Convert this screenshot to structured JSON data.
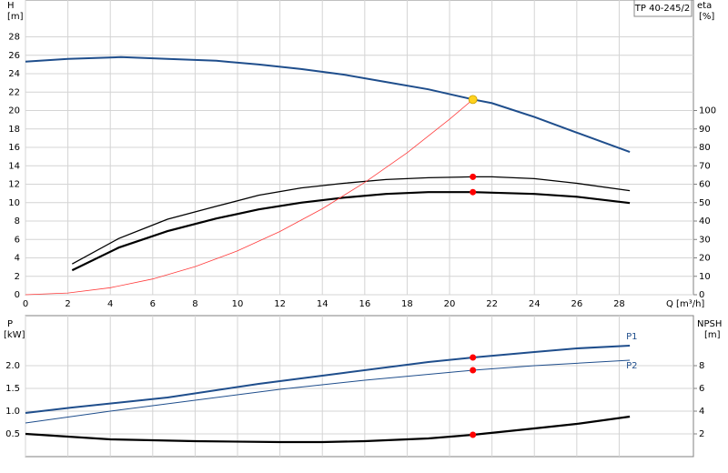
{
  "chart_data": [
    {
      "type": "line",
      "title": "TP 40-245/2",
      "ylabel": "H",
      "yunit": "[m]",
      "y2label": "eta",
      "y2unit": "[%]",
      "xlabel": "Q [m³/h]",
      "xlim": [
        0,
        31.5
      ],
      "xticks": [
        0,
        2,
        4,
        6,
        8,
        10,
        12,
        14,
        16,
        18,
        20,
        22,
        24,
        26,
        28
      ],
      "ylim": [
        0,
        32
      ],
      "yticks": [
        0,
        2,
        4,
        6,
        8,
        10,
        12,
        14,
        16,
        18,
        20,
        22,
        24,
        26,
        28
      ],
      "y2lim": [
        0,
        160
      ],
      "y2ticks": [
        0,
        10,
        20,
        30,
        40,
        50,
        60,
        70,
        80,
        90,
        100
      ],
      "grid": true,
      "series": [
        {
          "color": "#1f4e8c",
          "width": 2,
          "axis": "y",
          "x": [
            0,
            2,
            4.5,
            6.7,
            9,
            11,
            13,
            15,
            17,
            19,
            21.1,
            22,
            24,
            26,
            28.5
          ],
          "values": [
            25.3,
            25.6,
            25.8,
            25.6,
            25.4,
            25.0,
            24.5,
            23.9,
            23.1,
            22.3,
            21.2,
            20.8,
            19.3,
            17.6,
            15.5
          ]
        },
        {
          "color": "#000000",
          "width": 1.3,
          "axis": "y2",
          "x": [
            2.2,
            4.4,
            6.7,
            9,
            11,
            13,
            15,
            17,
            19,
            21.1,
            22,
            24,
            26,
            28.5
          ],
          "values": [
            16.7,
            30.5,
            41,
            48,
            54,
            58,
            60.5,
            62.5,
            63.5,
            64,
            64,
            63,
            60.5,
            56.5
          ]
        },
        {
          "color": "#000000",
          "width": 2.2,
          "axis": "y2",
          "x": [
            2.2,
            4.4,
            6.7,
            9,
            11,
            13,
            15,
            17,
            19,
            21.1,
            24,
            26,
            28.5
          ],
          "values": [
            13.3,
            25.6,
            34.5,
            41.4,
            46.3,
            50,
            52.7,
            54.7,
            55.7,
            55.7,
            54.7,
            53.2,
            49.8
          ]
        },
        {
          "color": "#ff3b3b",
          "width": 0.8,
          "axis": "y",
          "x": [
            0,
            2,
            4,
            6,
            8,
            10,
            12,
            14,
            16,
            18,
            20,
            21.1
          ],
          "values": [
            0,
            0.19,
            0.76,
            1.71,
            3.05,
            4.76,
            6.86,
            9.33,
            12.19,
            15.42,
            19.05,
            21.2
          ]
        }
      ],
      "points": [
        {
          "x": 21.1,
          "y": 21.2,
          "axis": "y",
          "color": "#ffd21f"
        },
        {
          "x": 21.1,
          "y": 64,
          "axis": "y2",
          "color": "#ff0000"
        },
        {
          "x": 21.1,
          "y": 55.7,
          "axis": "y2",
          "color": "#ff0000"
        }
      ]
    },
    {
      "type": "line",
      "ylabel": "P",
      "yunit": "[kW]",
      "y2label": "NPSH",
      "y2unit": "[m]",
      "xlim": [
        0,
        31.5
      ],
      "ylim": [
        0,
        3.1
      ],
      "yticks": [
        0.5,
        {
          "value": 1.0,
          "label": "1.0"
        },
        1.5,
        {
          "value": 2.0,
          "label": "2.0"
        }
      ],
      "y2lim": [
        0,
        12.4
      ],
      "y2ticks": [
        2,
        4,
        6,
        8
      ],
      "grid": true,
      "series": [
        {
          "name": "P1",
          "color": "#1f4e8c",
          "width": 2,
          "axis": "y",
          "label_side": "above",
          "x": [
            0,
            2.2,
            6.7,
            11,
            15,
            19,
            21.1,
            24,
            26,
            28.5
          ],
          "values": [
            0.96,
            1.08,
            1.3,
            1.6,
            1.84,
            2.08,
            2.18,
            2.3,
            2.38,
            2.44
          ]
        },
        {
          "name": "P2",
          "color": "#1f4e8c",
          "width": 1,
          "axis": "y",
          "label_side": "below",
          "x": [
            0,
            4,
            8,
            12,
            16,
            21.1,
            24,
            28.5
          ],
          "values": [
            0.74,
            1.0,
            1.24,
            1.48,
            1.68,
            1.9,
            2.0,
            2.12
          ]
        },
        {
          "color": "#000000",
          "width": 2.2,
          "axis": "y2",
          "x": [
            0,
            4,
            8,
            12,
            14,
            16,
            19,
            21.1,
            24,
            26,
            28.5
          ],
          "values": [
            2.0,
            1.52,
            1.36,
            1.28,
            1.28,
            1.36,
            1.6,
            1.92,
            2.48,
            2.88,
            3.52
          ]
        }
      ],
      "points": [
        {
          "x": 21.1,
          "y": 2.18,
          "axis": "y",
          "color": "#ff0000"
        },
        {
          "x": 21.1,
          "y": 1.9,
          "axis": "y",
          "color": "#ff0000"
        },
        {
          "x": 21.1,
          "y": 1.92,
          "axis": "y2",
          "color": "#ff0000"
        }
      ]
    }
  ]
}
